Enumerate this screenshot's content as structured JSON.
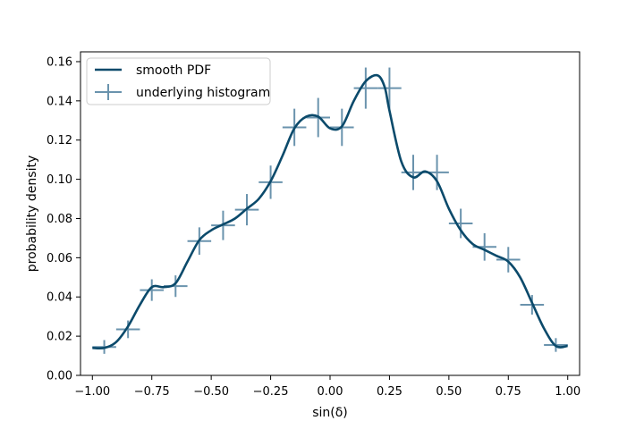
{
  "chart_data": {
    "type": "line",
    "xlabel": "sin(δ)",
    "ylabel": "probability density",
    "xlim": [
      -1.05,
      1.05
    ],
    "ylim": [
      0.0,
      0.165
    ],
    "x_ticks": [
      -1.0,
      -0.75,
      -0.5,
      -0.25,
      0.0,
      0.25,
      0.5,
      0.75,
      1.0
    ],
    "x_tick_labels": [
      "−1.00",
      "−0.75",
      "−0.50",
      "−0.25",
      "0.00",
      "0.25",
      "0.50",
      "0.75",
      "1.00"
    ],
    "y_ticks": [
      0.0,
      0.02,
      0.04,
      0.06,
      0.08,
      0.1,
      0.12,
      0.14,
      0.16
    ],
    "y_tick_labels": [
      "0.00",
      "0.02",
      "0.04",
      "0.06",
      "0.08",
      "0.10",
      "0.12",
      "0.14",
      "0.16"
    ],
    "grid": false,
    "legend_position": "top-left",
    "colors": {
      "smooth": "#0b4a6b",
      "histogram": "#6a93ad"
    },
    "series": [
      {
        "name": "smooth PDF",
        "kind": "line",
        "x": [
          -1.0,
          -0.95,
          -0.9,
          -0.85,
          -0.8,
          -0.75,
          -0.7,
          -0.65,
          -0.6,
          -0.55,
          -0.5,
          -0.45,
          -0.4,
          -0.35,
          -0.3,
          -0.25,
          -0.2,
          -0.15,
          -0.1,
          -0.05,
          0.0,
          0.05,
          0.1,
          0.15,
          0.2,
          0.23,
          0.25,
          0.3,
          0.35,
          0.4,
          0.45,
          0.5,
          0.55,
          0.6,
          0.65,
          0.7,
          0.75,
          0.8,
          0.85,
          0.9,
          0.95,
          1.0
        ],
        "y": [
          0.014,
          0.014,
          0.017,
          0.025,
          0.036,
          0.045,
          0.045,
          0.047,
          0.058,
          0.069,
          0.074,
          0.077,
          0.08,
          0.085,
          0.09,
          0.099,
          0.112,
          0.126,
          0.132,
          0.132,
          0.126,
          0.127,
          0.14,
          0.15,
          0.153,
          0.147,
          0.135,
          0.109,
          0.101,
          0.104,
          0.099,
          0.085,
          0.074,
          0.067,
          0.064,
          0.061,
          0.058,
          0.05,
          0.037,
          0.024,
          0.015,
          0.015
        ]
      },
      {
        "name": "underlying histogram",
        "kind": "errorbar",
        "x": [
          -0.95,
          -0.85,
          -0.75,
          -0.65,
          -0.55,
          -0.45,
          -0.35,
          -0.25,
          -0.15,
          -0.05,
          0.05,
          0.15,
          0.25,
          0.35,
          0.45,
          0.55,
          0.65,
          0.75,
          0.85,
          0.95
        ],
        "y": [
          0.0145,
          0.0235,
          0.0435,
          0.0455,
          0.0685,
          0.0765,
          0.0845,
          0.0985,
          0.1265,
          0.1315,
          0.1265,
          0.1465,
          0.1465,
          0.1035,
          0.1035,
          0.0775,
          0.0655,
          0.059,
          0.036,
          0.0155
        ],
        "xerr": 0.05,
        "yerr": [
          0.0035,
          0.0045,
          0.0055,
          0.0055,
          0.007,
          0.0075,
          0.008,
          0.0085,
          0.0095,
          0.01,
          0.0095,
          0.0105,
          0.0105,
          0.009,
          0.009,
          0.0075,
          0.007,
          0.0065,
          0.005,
          0.0035
        ]
      }
    ]
  }
}
